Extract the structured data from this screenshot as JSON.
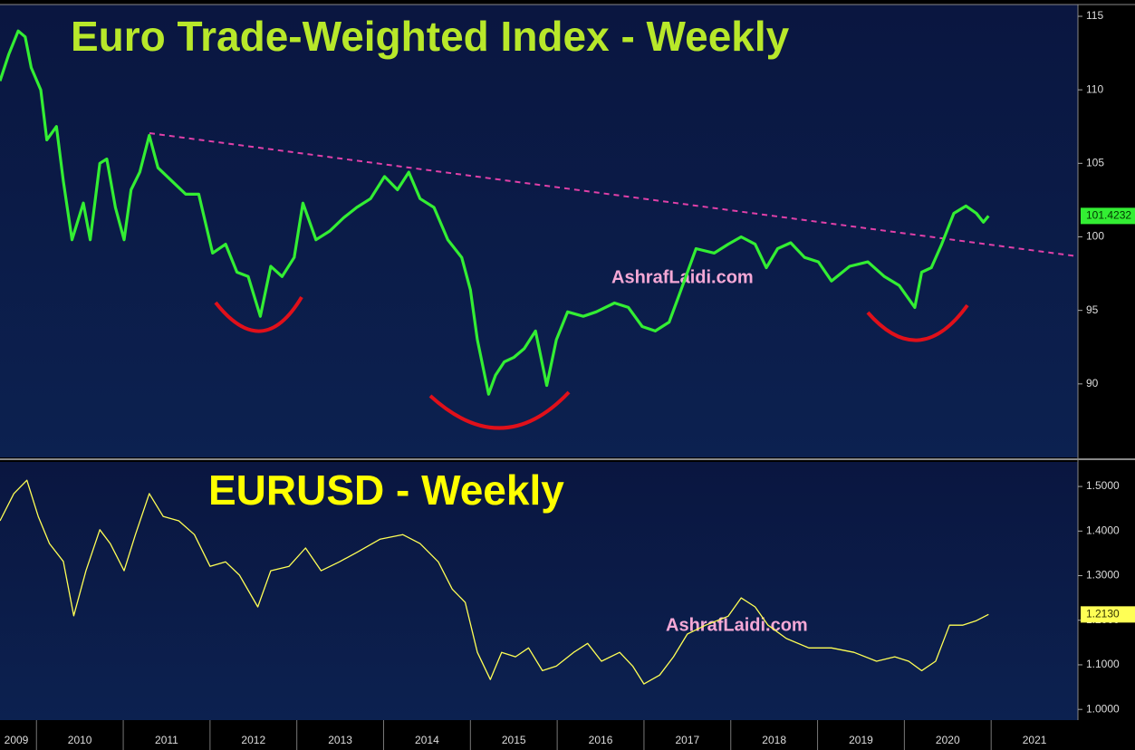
{
  "chart_data": [
    {
      "type": "line",
      "title": "Euro Trade-Weighted Index - Weekly",
      "annotation": "AshrafLaidi.com",
      "xlim": [
        2009.58,
        2022.0
      ],
      "ylim": [
        85.0,
        115.8
      ],
      "yticks": [
        90,
        95,
        100,
        105,
        110,
        115
      ],
      "last_value_label": "101.4232",
      "series": [
        {
          "color": "#33ee33",
          "x": [
            2009.58,
            2009.68,
            2009.79,
            2009.87,
            2009.94,
            2010.05,
            2010.12,
            2010.23,
            2010.31,
            2010.41,
            2010.54,
            2010.62,
            2010.73,
            2010.81,
            2010.91,
            2011.01,
            2011.09,
            2011.19,
            2011.3,
            2011.4,
            2011.56,
            2011.72,
            2011.87,
            2012.03,
            2012.18,
            2012.31,
            2012.44,
            2012.58,
            2012.7,
            2012.83,
            2012.97,
            2013.07,
            2013.22,
            2013.38,
            2013.54,
            2013.69,
            2013.85,
            2014.01,
            2014.16,
            2014.29,
            2014.42,
            2014.58,
            2014.74,
            2014.9,
            2015.0,
            2015.08,
            2015.21,
            2015.29,
            2015.39,
            2015.5,
            2015.62,
            2015.75,
            2015.88,
            2015.99,
            2016.12,
            2016.3,
            2016.45,
            2016.66,
            2016.82,
            2016.98,
            2017.13,
            2017.29,
            2017.39,
            2017.6,
            2017.81,
            2017.97,
            2018.12,
            2018.28,
            2018.41,
            2018.54,
            2018.69,
            2018.85,
            2019.01,
            2019.16,
            2019.37,
            2019.58,
            2019.77,
            2019.94,
            2020.12,
            2020.2,
            2020.31,
            2020.43,
            2020.57,
            2020.71,
            2020.83,
            2020.91,
            2020.97
          ],
          "values": [
            110.6,
            112.4,
            114.0,
            113.6,
            111.5,
            110.0,
            106.6,
            107.5,
            103.8,
            99.8,
            102.3,
            99.8,
            105.0,
            105.3,
            102.0,
            99.8,
            103.2,
            104.4,
            106.9,
            104.7,
            103.8,
            102.9,
            102.9,
            98.9,
            99.5,
            97.6,
            97.3,
            94.6,
            98.0,
            97.3,
            98.6,
            102.3,
            99.8,
            100.4,
            101.3,
            102.0,
            102.6,
            104.1,
            103.2,
            104.4,
            102.6,
            102.0,
            99.8,
            98.6,
            96.4,
            93.0,
            89.3,
            90.6,
            91.5,
            91.8,
            92.4,
            93.6,
            89.9,
            93.0,
            94.9,
            94.6,
            94.9,
            95.5,
            95.2,
            93.9,
            93.6,
            94.2,
            95.8,
            99.2,
            98.9,
            99.5,
            100.0,
            99.5,
            97.9,
            99.2,
            99.6,
            98.6,
            98.3,
            97.0,
            98.0,
            98.3,
            97.3,
            96.7,
            95.2,
            97.6,
            97.9,
            99.5,
            101.6,
            102.1,
            101.6,
            101.0,
            101.4232
          ]
        }
      ]
    },
    {
      "type": "line",
      "title": "EURUSD - Weekly",
      "annotation": "AshrafLaidi.com",
      "xlim": [
        2009.58,
        2022.0
      ],
      "ylim": [
        0.976,
        1.555
      ],
      "xticks": [
        2009,
        2010,
        2011,
        2012,
        2013,
        2014,
        2015,
        2016,
        2017,
        2018,
        2019,
        2020,
        2021
      ],
      "yticks": [
        {
          "value": 1.0,
          "label": "1.0000"
        },
        {
          "value": 1.1,
          "label": "1.1000"
        },
        {
          "value": 1.2,
          "label": "1.2000"
        },
        {
          "value": 1.3,
          "label": "1.3000"
        },
        {
          "value": 1.4,
          "label": "1.4000"
        },
        {
          "value": 1.5,
          "label": "1.5000"
        }
      ],
      "last_value_label": "1.2130",
      "series": [
        {
          "color": "#ffff55",
          "x": [
            2009.58,
            2009.74,
            2009.89,
            2010.02,
            2010.15,
            2010.31,
            2010.43,
            2010.57,
            2010.73,
            2010.85,
            2011.01,
            2011.14,
            2011.3,
            2011.46,
            2011.64,
            2011.82,
            2012.0,
            2012.18,
            2012.34,
            2012.55,
            2012.7,
            2012.91,
            2013.1,
            2013.28,
            2013.49,
            2013.69,
            2013.96,
            2014.22,
            2014.42,
            2014.63,
            2014.79,
            2014.94,
            2015.08,
            2015.23,
            2015.36,
            2015.52,
            2015.67,
            2015.83,
            2015.99,
            2016.19,
            2016.35,
            2016.51,
            2016.72,
            2016.87,
            2017.0,
            2017.18,
            2017.34,
            2017.5,
            2017.71,
            2017.97,
            2018.12,
            2018.28,
            2018.43,
            2018.64,
            2018.9,
            2019.16,
            2019.42,
            2019.68,
            2019.89,
            2020.05,
            2020.2,
            2020.36,
            2020.52,
            2020.67,
            2020.83,
            2020.97
          ],
          "values": [
            1.423,
            1.484,
            1.514,
            1.433,
            1.372,
            1.332,
            1.21,
            1.311,
            1.403,
            1.372,
            1.311,
            1.392,
            1.484,
            1.433,
            1.423,
            1.392,
            1.321,
            1.331,
            1.301,
            1.23,
            1.311,
            1.321,
            1.362,
            1.311,
            1.331,
            1.352,
            1.382,
            1.392,
            1.372,
            1.331,
            1.27,
            1.24,
            1.128,
            1.067,
            1.128,
            1.118,
            1.138,
            1.087,
            1.097,
            1.128,
            1.148,
            1.108,
            1.128,
            1.097,
            1.057,
            1.077,
            1.118,
            1.169,
            1.189,
            1.209,
            1.25,
            1.23,
            1.189,
            1.159,
            1.138,
            1.138,
            1.128,
            1.108,
            1.118,
            1.108,
            1.087,
            1.108,
            1.189,
            1.189,
            1.199,
            1.213
          ]
        }
      ]
    }
  ]
}
